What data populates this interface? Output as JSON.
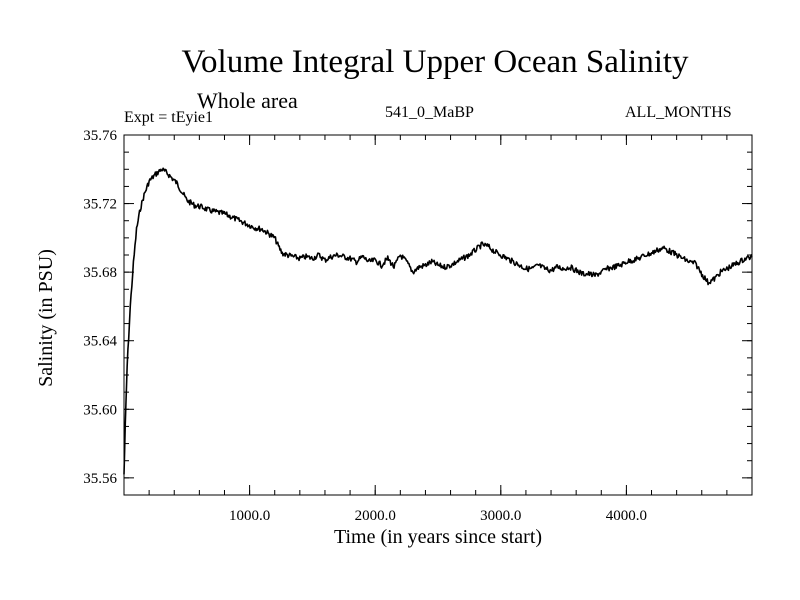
{
  "header": {
    "title": "Volume Integral Upper Ocean Salinity",
    "subtitle": "Whole area",
    "expt_label": "Expt = tEyie1",
    "run_label": "541_0_MaBP",
    "months_label": "ALL_MONTHS"
  },
  "chart_data": {
    "type": "line",
    "title": "Volume Integral Upper Ocean Salinity",
    "xlabel": "Time (in years since start)",
    "ylabel": "Salinity (in PSU)",
    "xlim": [
      0,
      5000
    ],
    "ylim": [
      35.55,
      35.76
    ],
    "x_ticks": [
      1000,
      2000,
      3000,
      4000
    ],
    "x_tick_labels": [
      "1000.0",
      "2000.0",
      "3000.0",
      "4000.0"
    ],
    "y_ticks": [
      35.56,
      35.6,
      35.64,
      35.68,
      35.72,
      35.76
    ],
    "y_tick_labels": [
      "35.56",
      "35.60",
      "35.64",
      "35.68",
      "35.72",
      "35.76"
    ],
    "grid": false,
    "series": [
      {
        "name": "salinity",
        "color": "#000000",
        "x": [
          0,
          10,
          25,
          50,
          75,
          100,
          130,
          160,
          200,
          250,
          300,
          340,
          380,
          420,
          460,
          500,
          560,
          620,
          680,
          740,
          800,
          860,
          920,
          980,
          1040,
          1100,
          1160,
          1200,
          1230,
          1260,
          1300,
          1350,
          1400,
          1450,
          1500,
          1550,
          1600,
          1650,
          1700,
          1750,
          1800,
          1850,
          1900,
          1950,
          2000,
          2050,
          2100,
          2150,
          2200,
          2250,
          2300,
          2350,
          2400,
          2450,
          2500,
          2550,
          2600,
          2650,
          2700,
          2750,
          2800,
          2850,
          2900,
          2950,
          3000,
          3050,
          3100,
          3150,
          3200,
          3250,
          3300,
          3350,
          3400,
          3450,
          3500,
          3550,
          3600,
          3650,
          3700,
          3750,
          3800,
          3850,
          3900,
          3950,
          4000,
          4050,
          4100,
          4150,
          4200,
          4250,
          4300,
          4350,
          4400,
          4450,
          4500,
          4550,
          4600,
          4650,
          4700,
          4750,
          4800,
          4850,
          4900,
          4950,
          5000
        ],
        "values": [
          35.562,
          35.59,
          35.625,
          35.66,
          35.685,
          35.705,
          35.717,
          35.725,
          35.733,
          35.737,
          35.74,
          35.738,
          35.735,
          35.732,
          35.727,
          35.722,
          35.719,
          35.718,
          35.716,
          35.715,
          35.714,
          35.712,
          35.71,
          35.708,
          35.706,
          35.705,
          35.702,
          35.7,
          35.695,
          35.691,
          35.69,
          35.689,
          35.688,
          35.689,
          35.688,
          35.69,
          35.687,
          35.689,
          35.69,
          35.689,
          35.688,
          35.686,
          35.689,
          35.686,
          35.687,
          35.684,
          35.688,
          35.683,
          35.69,
          35.686,
          35.68,
          35.683,
          35.684,
          35.686,
          35.684,
          35.683,
          35.684,
          35.686,
          35.688,
          35.69,
          35.693,
          35.696,
          35.695,
          35.692,
          35.69,
          35.688,
          35.686,
          35.684,
          35.682,
          35.682,
          35.684,
          35.682,
          35.681,
          35.683,
          35.682,
          35.683,
          35.681,
          35.679,
          35.679,
          35.678,
          35.68,
          35.682,
          35.683,
          35.684,
          35.686,
          35.687,
          35.688,
          35.69,
          35.691,
          35.693,
          35.694,
          35.692,
          35.69,
          35.688,
          35.686,
          35.685,
          35.679,
          35.674,
          35.676,
          35.68,
          35.682,
          35.684,
          35.686,
          35.688,
          35.689
        ]
      }
    ]
  }
}
